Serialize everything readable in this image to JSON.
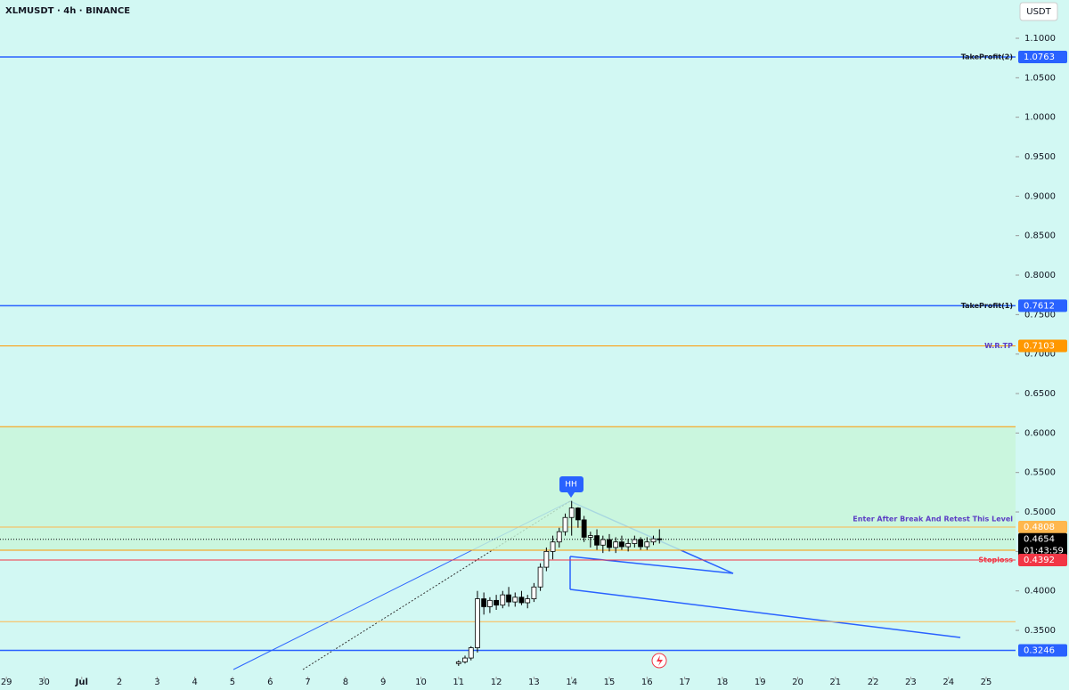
{
  "chart_data": {
    "type": "candlestick",
    "title": "XLMUSDT · 4h · BINANCE",
    "currency": "USDT",
    "xlim": [
      -0.17,
      26.78
    ],
    "xticks": [
      {
        "value": 0,
        "label": "29"
      },
      {
        "value": 1,
        "label": "30"
      },
      {
        "value": 2,
        "label": "Jul"
      },
      {
        "value": 3,
        "label": "2"
      },
      {
        "value": 4,
        "label": "3"
      },
      {
        "value": 5,
        "label": "4"
      },
      {
        "value": 6,
        "label": "5"
      },
      {
        "value": 7,
        "label": "6"
      },
      {
        "value": 8,
        "label": "7"
      },
      {
        "value": 9,
        "label": "8"
      },
      {
        "value": 10,
        "label": "9"
      },
      {
        "value": 11,
        "label": "10"
      },
      {
        "value": 12,
        "label": "11"
      },
      {
        "value": 13,
        "label": "12"
      },
      {
        "value": 14,
        "label": "13"
      },
      {
        "value": 15,
        "label": "14"
      },
      {
        "value": 16,
        "label": "15"
      },
      {
        "value": 17,
        "label": "16"
      },
      {
        "value": 18,
        "label": "17"
      },
      {
        "value": 19,
        "label": "18"
      },
      {
        "value": 20,
        "label": "19"
      },
      {
        "value": 21,
        "label": "20"
      },
      {
        "value": 22,
        "label": "21"
      },
      {
        "value": 23,
        "label": "22"
      },
      {
        "value": 24,
        "label": "23"
      },
      {
        "value": 25,
        "label": "24"
      },
      {
        "value": 26,
        "label": "25"
      }
    ],
    "ylim": [
      0.2914,
      1.1485
    ],
    "yticks": [
      {
        "value": 0.35,
        "label": "0.3500"
      },
      {
        "value": 0.4,
        "label": "0.4000"
      },
      {
        "value": 0.45,
        "label": "0.4500"
      },
      {
        "value": 0.5,
        "label": "0.5000"
      },
      {
        "value": 0.55,
        "label": "0.5500"
      },
      {
        "value": 0.6,
        "label": "0.6000"
      },
      {
        "value": 0.65,
        "label": "0.6500"
      },
      {
        "value": 0.7,
        "label": "0.7000"
      },
      {
        "value": 0.75,
        "label": "0.7500"
      },
      {
        "value": 0.8,
        "label": "0.8000"
      },
      {
        "value": 0.85,
        "label": "0.8500"
      },
      {
        "value": 0.9,
        "label": "0.9000"
      },
      {
        "value": 0.95,
        "label": "0.9500"
      },
      {
        "value": 1.0,
        "label": "1.0000"
      },
      {
        "value": 1.05,
        "label": "1.0500"
      },
      {
        "value": 1.1,
        "label": "1.1000"
      }
    ],
    "candles": {
      "x": [
        12.0,
        12.17,
        12.33,
        12.5,
        12.67,
        12.83,
        13.0,
        13.17,
        13.33,
        13.5,
        13.67,
        13.83,
        14.0,
        14.17,
        14.33,
        14.5,
        14.67,
        14.83,
        15.0,
        15.17,
        15.33,
        15.5,
        15.67,
        15.83,
        16.0,
        16.17,
        16.33,
        16.5,
        16.67,
        16.83,
        17.0,
        17.17,
        17.33
      ],
      "open": [
        0.308,
        0.31,
        0.315,
        0.328,
        0.39,
        0.38,
        0.388,
        0.382,
        0.395,
        0.386,
        0.392,
        0.385,
        0.39,
        0.405,
        0.43,
        0.45,
        0.462,
        0.475,
        0.493,
        0.505,
        0.49,
        0.468,
        0.47,
        0.458,
        0.465,
        0.455,
        0.462,
        0.456,
        0.46,
        0.465,
        0.456,
        0.462,
        0.466
      ],
      "high": [
        0.312,
        0.318,
        0.33,
        0.4,
        0.398,
        0.392,
        0.395,
        0.4,
        0.405,
        0.398,
        0.4,
        0.395,
        0.41,
        0.435,
        0.455,
        0.47,
        0.48,
        0.498,
        0.514,
        0.506,
        0.495,
        0.475,
        0.478,
        0.47,
        0.472,
        0.468,
        0.47,
        0.466,
        0.47,
        0.468,
        0.468,
        0.47,
        0.478
      ],
      "low": [
        0.305,
        0.308,
        0.312,
        0.322,
        0.37,
        0.372,
        0.376,
        0.378,
        0.38,
        0.38,
        0.382,
        0.378,
        0.386,
        0.4,
        0.425,
        0.44,
        0.455,
        0.47,
        0.47,
        0.48,
        0.462,
        0.455,
        0.452,
        0.448,
        0.45,
        0.448,
        0.452,
        0.45,
        0.455,
        0.452,
        0.452,
        0.458,
        0.46
      ],
      "close": [
        0.31,
        0.315,
        0.328,
        0.39,
        0.38,
        0.388,
        0.382,
        0.395,
        0.386,
        0.392,
        0.385,
        0.39,
        0.405,
        0.43,
        0.45,
        0.462,
        0.475,
        0.493,
        0.505,
        0.49,
        0.468,
        0.47,
        0.458,
        0.465,
        0.455,
        0.462,
        0.456,
        0.46,
        0.465,
        0.456,
        0.462,
        0.466,
        0.4654
      ],
      "up_color": "#ffffff",
      "down_color": "#000000"
    },
    "zone": {
      "from": 0.4515,
      "to": 0.608,
      "color": "#c8f5d8"
    },
    "levels": [
      {
        "name": "TakeProfit(2)",
        "value": 1.0763,
        "color": "#2962ff",
        "label_color": "#131722"
      },
      {
        "name": "TakeProfit(1)",
        "value": 0.7612,
        "color": "#2962ff",
        "label_color": "#131722"
      },
      {
        "name": "W.R.TP",
        "value": 0.7103,
        "color": "#ff9800",
        "label_color": "#5b3cc4"
      },
      {
        "value": 0.608,
        "color": "#ff9800"
      },
      {
        "name": "Enter After Break And Retest This Level",
        "value": 0.4808,
        "color": "#ffb74d",
        "label_color": "#5b3cc4"
      },
      {
        "value": 0.4654,
        "color": "#000000",
        "dotted": true
      },
      {
        "value": 0.4515,
        "color": "#ff9800"
      },
      {
        "name": "Stoploss",
        "value": 0.4392,
        "color": "#f23645",
        "label_color": "#f23645"
      },
      {
        "value": 0.361,
        "color": "#ffb74d"
      },
      {
        "value": 0.3246,
        "color": "#2962ff"
      }
    ],
    "current_level": 5,
    "countdown": "01:43:59",
    "marker": "HH"
  }
}
